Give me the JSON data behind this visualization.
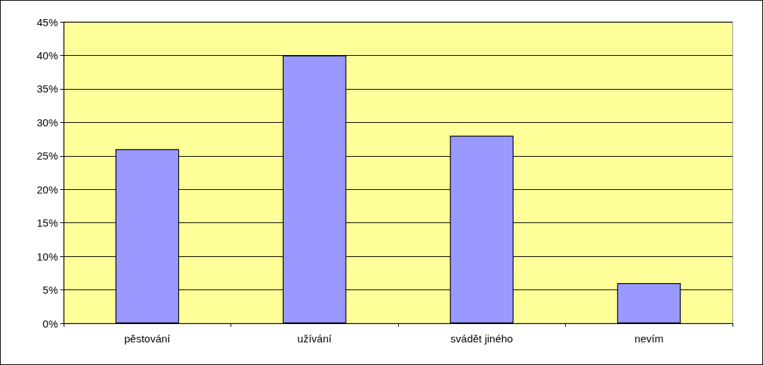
{
  "chart_data": {
    "type": "bar",
    "categories": [
      "pěstování",
      "užívání",
      "svádět jiného",
      "nevím"
    ],
    "values": [
      26,
      40,
      28,
      6
    ],
    "color": "#9999ff",
    "ylim": [
      0,
      45
    ],
    "yticks": [
      {
        "value": 0,
        "label": "0%"
      },
      {
        "value": 5,
        "label": "5%"
      },
      {
        "value": 10,
        "label": "10%"
      },
      {
        "value": 15,
        "label": "15%"
      },
      {
        "value": 20,
        "label": "20%"
      },
      {
        "value": 25,
        "label": "25%"
      },
      {
        "value": 30,
        "label": "30%"
      },
      {
        "value": 35,
        "label": "35%"
      },
      {
        "value": 40,
        "label": "40%"
      },
      {
        "value": 45,
        "label": "45%"
      }
    ],
    "grid": "y"
  }
}
